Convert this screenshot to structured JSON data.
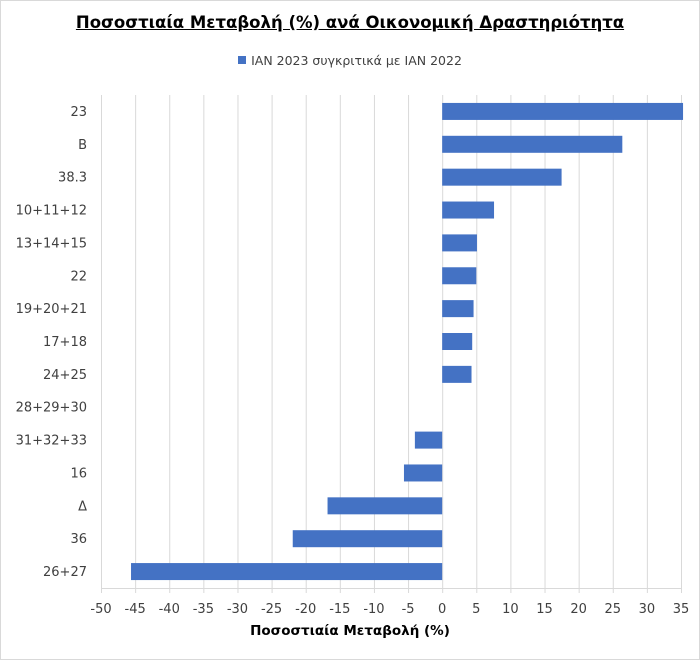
{
  "chart_data": {
    "type": "bar",
    "orientation": "horizontal",
    "title": "Ποσοστιαία Μεταβολή (%) ανά Οικονομική Δραστηριότητα",
    "xlabel": "Ποσοστιαία Μεταβολή (%)",
    "ylabel": "",
    "categories": [
      "23",
      "Β",
      "38.3",
      "10+11+12",
      "13+14+15",
      "22",
      "19+20+21",
      "17+18",
      "24+25",
      "28+29+30",
      "31+32+33",
      "16",
      "Δ",
      "36",
      "26+27"
    ],
    "series": [
      {
        "name": "ΙΑΝ 2023 συγκριτικά με ΙΑΝ 2022",
        "color": "#4472C4",
        "values": [
          35.3,
          26.4,
          17.5,
          7.6,
          5.1,
          5.0,
          4.6,
          4.4,
          4.3,
          0.0,
          -4.0,
          -5.6,
          -16.8,
          -21.9,
          -45.6
        ]
      }
    ],
    "xlim": [
      -50,
      35
    ],
    "xticks": [
      -50,
      -45,
      -40,
      -35,
      -30,
      -25,
      -20,
      -15,
      -10,
      -5,
      0,
      5,
      10,
      15,
      20,
      25,
      30,
      35
    ],
    "grid": true,
    "legend": "top"
  }
}
